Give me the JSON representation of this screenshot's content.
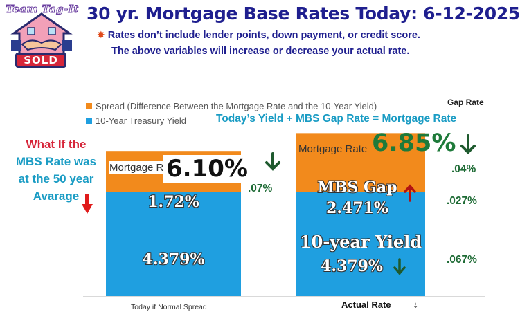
{
  "logo": {
    "top_text": "Team Tag-It",
    "badge_text": "SOLD"
  },
  "header": {
    "title": "30 yr. Mortgage Base Rates Today: 6-12-2025",
    "note_line1": "Rates don’t include lender points, down payment, or credit score.",
    "note_line2": "The above variables will increase or decrease your actual rate."
  },
  "colors": {
    "spread": "#f28a1c",
    "treasury": "#1f9fe0",
    "title": "#1f1f8f",
    "green": "#1e7a3a",
    "red": "#d6263a"
  },
  "legend": {
    "spread": "Spread (Difference Between the Mortgage Rate and the 10-Year Yield)",
    "treasury": "10-Year Treasury Yield"
  },
  "gap_rate_header": "Gap Rate",
  "equation": "Today’s  Yield +  MBS Gap Rate = Mortgage Rate",
  "what_if": {
    "line1": "What If the",
    "line2": "MBS Rate was",
    "line3": "at the 50 year",
    "line4": "Avarage"
  },
  "chart_data": {
    "type": "bar",
    "stacked": true,
    "categories": [
      "Today if Normal Spread",
      "Actual Rate"
    ],
    "series": [
      {
        "name": "10-Year Treasury Yield",
        "values": [
          4.379,
          4.379
        ]
      },
      {
        "name": "Spread (Difference Between the Mortgage Rate and the 10-Year Yield)",
        "values": [
          1.72,
          2.471
        ]
      }
    ],
    "totals": [
      6.1,
      6.85
    ],
    "ylim": [
      0,
      8
    ],
    "legend_position": "top-left"
  },
  "bars": {
    "left": {
      "label": "Mortgage Rate",
      "total_label": "6.10%",
      "spread_label": "1.72%",
      "treasury_label": "4.379%",
      "change_label": ".07%"
    },
    "right": {
      "label": "Mortgage Rate",
      "total_label": "6.85%",
      "spread_title": "MBS Gap",
      "spread_label": "2.471%",
      "treasury_title": "10-year Yield",
      "treasury_label": "4.379%"
    }
  },
  "gap_changes": {
    "mortgage": ".04%",
    "spread": ".027%",
    "yield": ".067%"
  },
  "icons": [
    "down-arrow-icon",
    "up-arrow-icon",
    "red-down-arrow-icon"
  ]
}
